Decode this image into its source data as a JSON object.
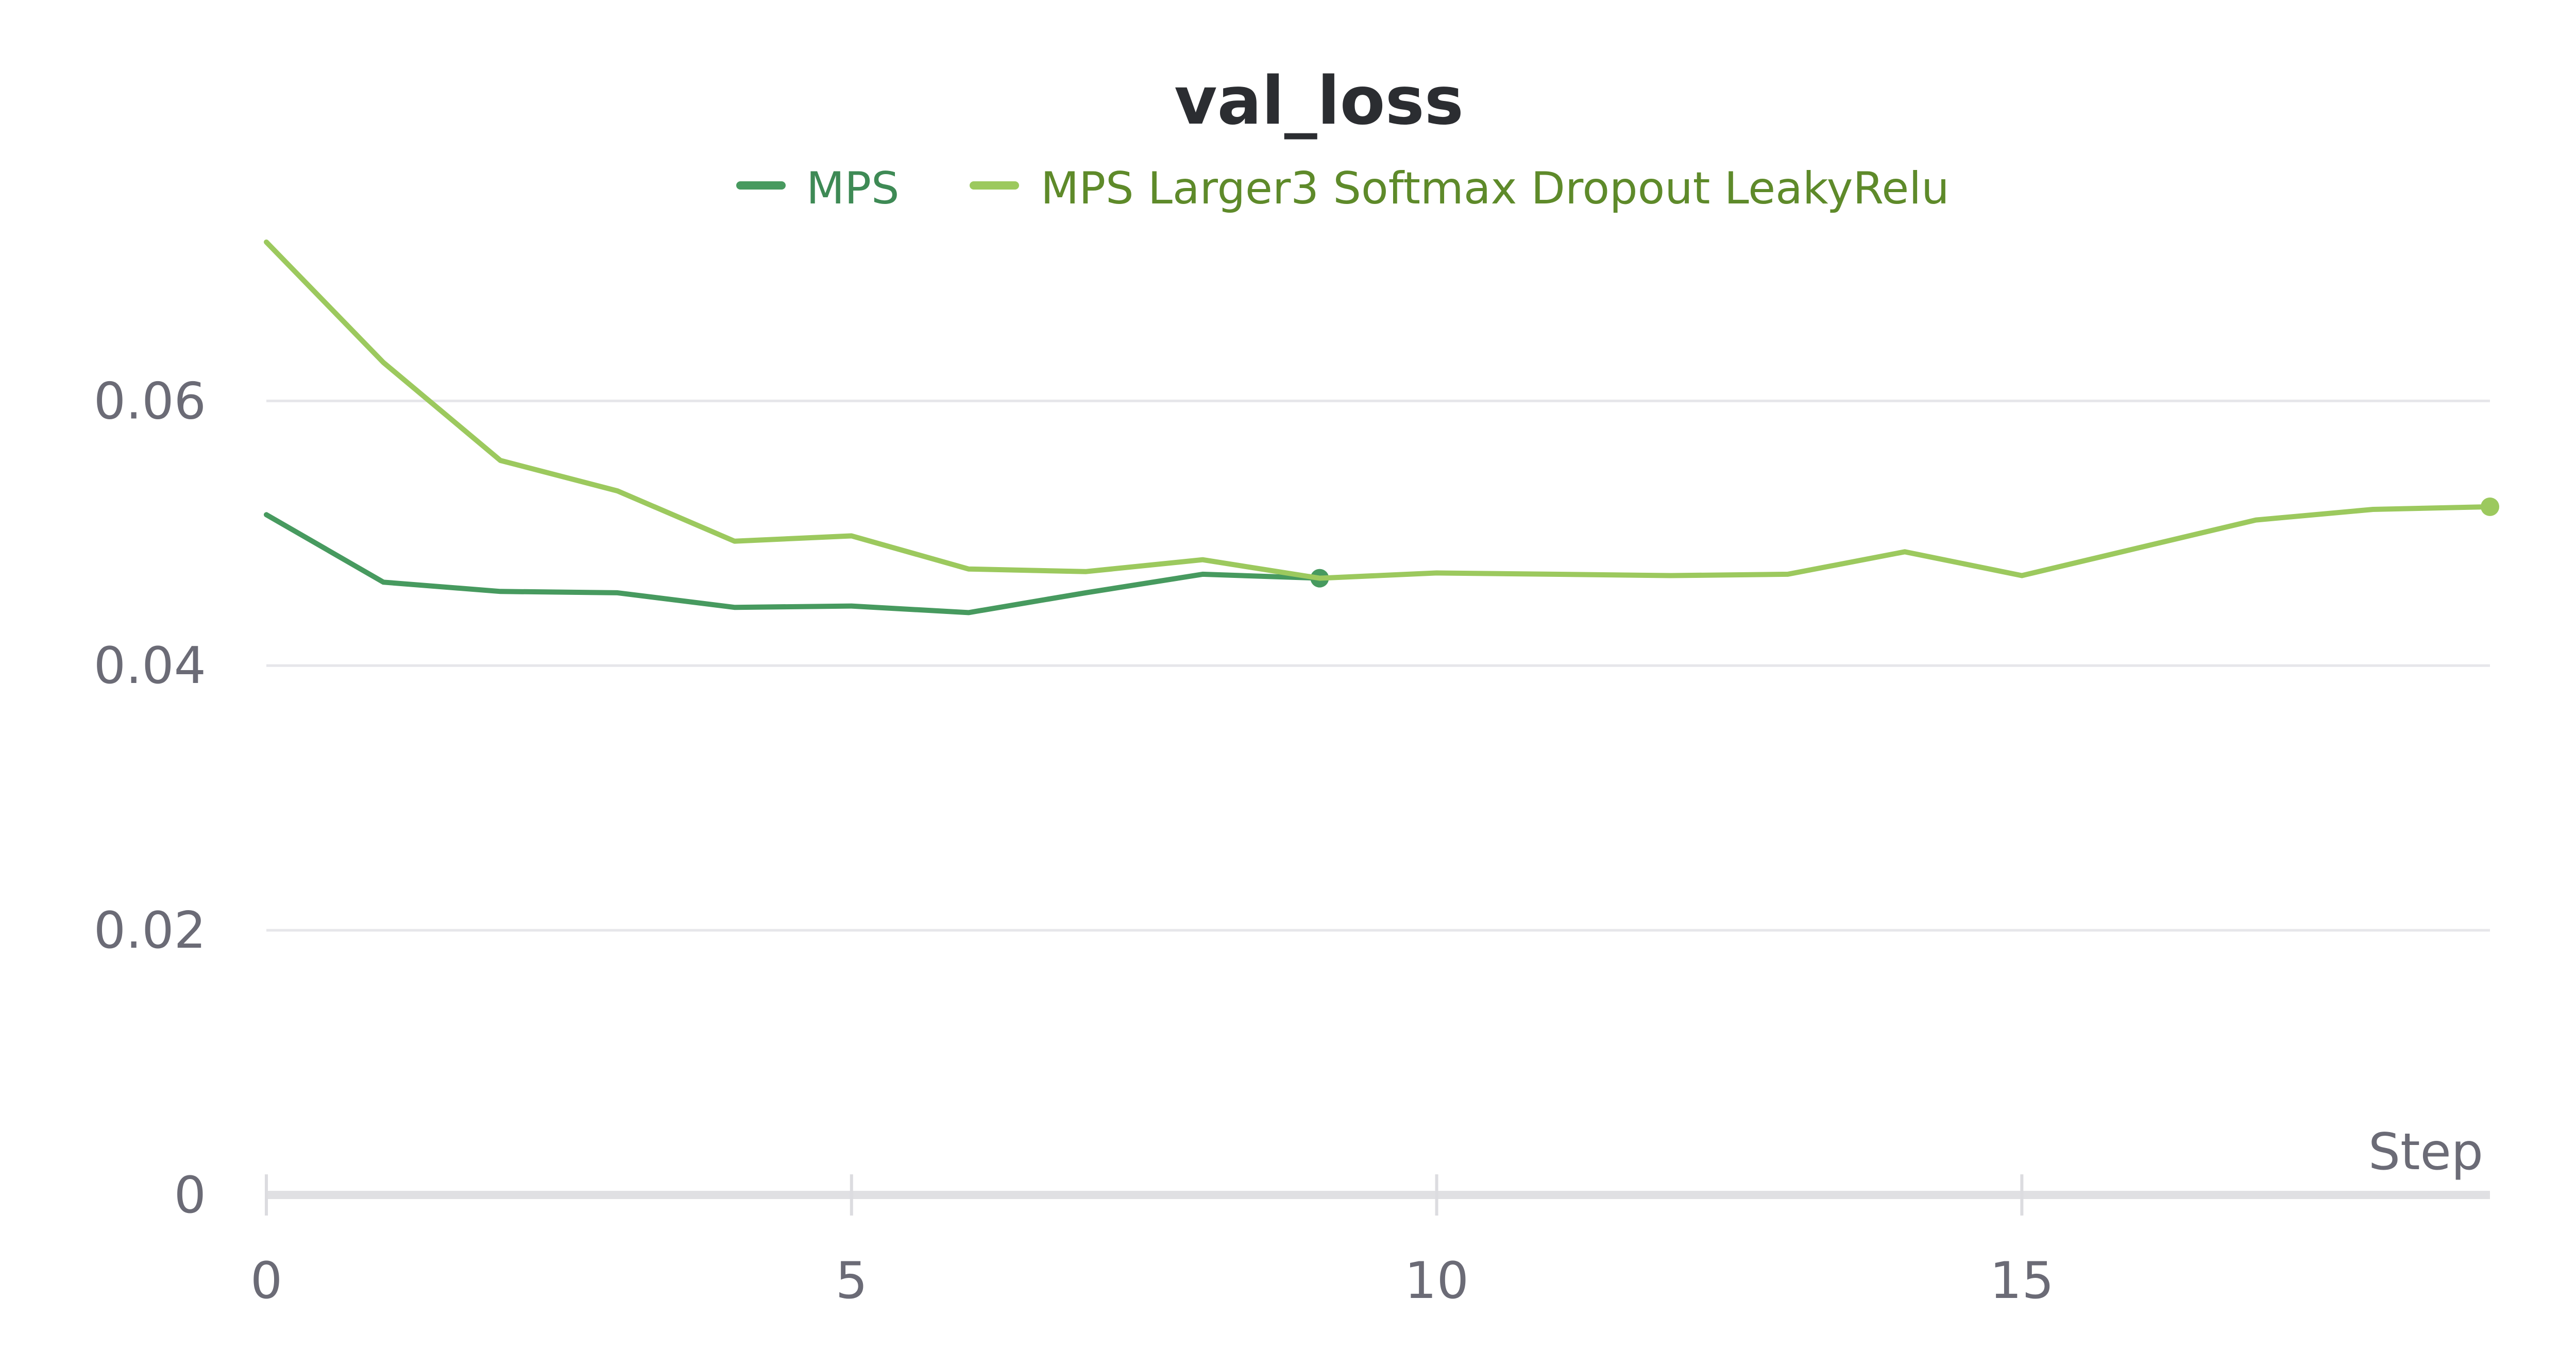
{
  "chart_data": {
    "type": "line",
    "title": "val_loss",
    "xlabel": "Step",
    "ylabel": "",
    "xlim": [
      0,
      19
    ],
    "ylim": [
      0,
      0.072
    ],
    "x_ticks": [
      0,
      5,
      10,
      15
    ],
    "x_tick_labels": [
      "0",
      "5",
      "10",
      "15"
    ],
    "y_ticks": [
      0,
      0.02,
      0.04,
      0.06
    ],
    "y_tick_labels": [
      "0",
      "0.02",
      "0.04",
      "0.06"
    ],
    "grid": true,
    "legend_position": "top-center",
    "series": [
      {
        "name": "MPS",
        "color": "#479a5f",
        "text_color": "#3e8a55",
        "x": [
          0,
          1,
          2,
          3,
          4,
          5,
          6,
          7,
          8,
          9
        ],
        "y": [
          0.0514,
          0.0463,
          0.0456,
          0.0455,
          0.0444,
          0.0445,
          0.044,
          0.0455,
          0.0469,
          0.0466
        ]
      },
      {
        "name": "MPS Larger3 Softmax Dropout LeakyRelu",
        "color": "#9cc95e",
        "text_color": "#5e8a2a",
        "x": [
          0,
          1,
          2,
          3,
          4,
          5,
          6,
          7,
          8,
          9,
          10,
          11,
          12,
          13,
          14,
          15,
          16,
          17,
          18,
          19
        ],
        "y": [
          0.072,
          0.0629,
          0.0555,
          0.0532,
          0.0494,
          0.0498,
          0.0473,
          0.0471,
          0.048,
          0.0466,
          0.047,
          0.0469,
          0.0468,
          0.0469,
          0.0486,
          0.0468,
          0.0489,
          0.051,
          0.0518,
          0.052
        ]
      }
    ]
  }
}
